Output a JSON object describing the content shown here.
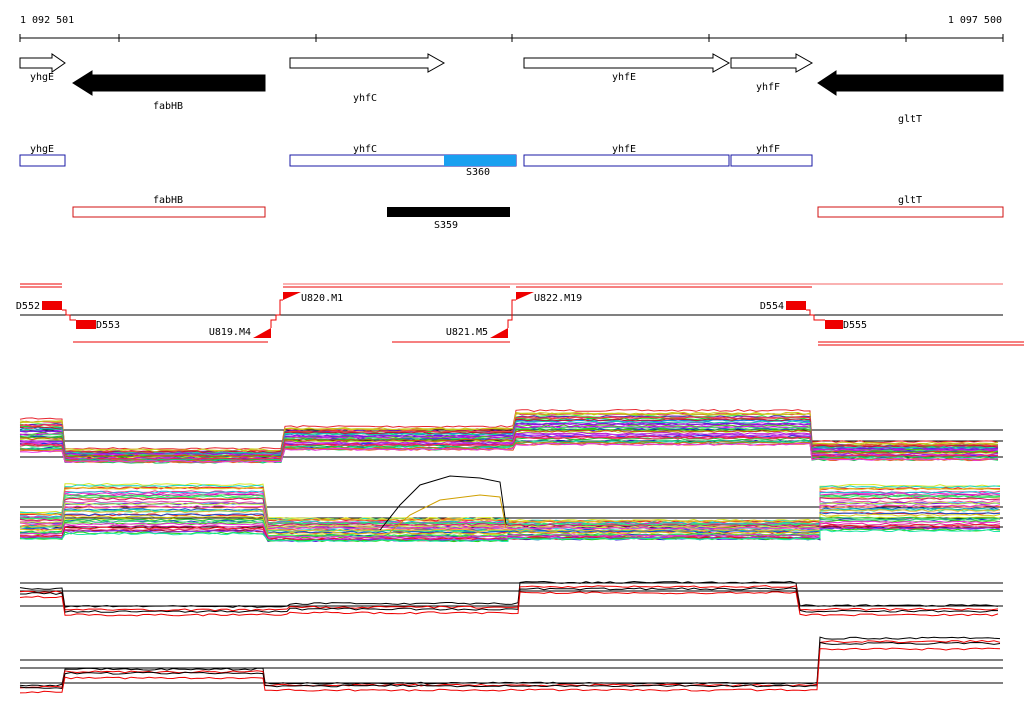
{
  "ruler": {
    "start": "1 092 501",
    "end": "1 097 500"
  },
  "genes": [
    {
      "name": "yhgE"
    },
    {
      "name": "fabHB"
    },
    {
      "name": "yhfC"
    },
    {
      "name": "yhfE"
    },
    {
      "name": "yhfF"
    },
    {
      "name": "gltT"
    }
  ],
  "segments": [
    "S360",
    "S359"
  ],
  "transcripts": [
    "D552",
    "D553",
    "U819.M4",
    "U820.M1",
    "U821.M5",
    "U822.M19",
    "D554",
    "D555"
  ]
}
